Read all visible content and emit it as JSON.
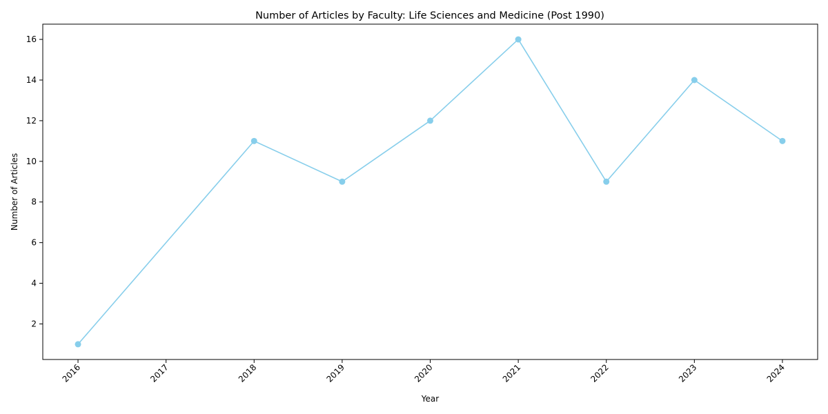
{
  "chart_data": {
    "type": "line",
    "title": "Number of Articles by Faculty: Life Sciences and Medicine (Post 1990)",
    "xlabel": "Year",
    "ylabel": "Number of Articles",
    "x": [
      2016,
      2018,
      2019,
      2020,
      2021,
      2022,
      2023,
      2024
    ],
    "series": [
      {
        "values": [
          1,
          11,
          9,
          12,
          16,
          9,
          14,
          11
        ],
        "color": "#87CEEB"
      }
    ],
    "xticks": [
      "2016",
      "2017",
      "2018",
      "2019",
      "2020",
      "2021",
      "2022",
      "2023",
      "2024"
    ],
    "yticks": [
      "2",
      "4",
      "6",
      "8",
      "10",
      "12",
      "14",
      "16"
    ],
    "xlim": [
      2015.6,
      2024.4
    ],
    "ylim": [
      0.25,
      16.75
    ],
    "grid": false,
    "legend": "none",
    "markers": "circle"
  }
}
